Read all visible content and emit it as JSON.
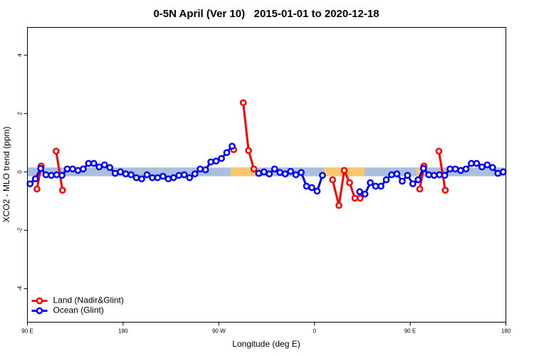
{
  "chart_data": {
    "type": "line",
    "title": "0-5N April (Ver 10)   2015-01-01 to 2020-12-18",
    "xlabel": "Longitude (deg E)",
    "ylabel": "XCO2 - MLO trend (ppm)",
    "xlim": [
      90,
      540
    ],
    "ylim": [
      -5.15,
      4.95
    ],
    "xticks": [
      {
        "value": 90,
        "label": "90 E"
      },
      {
        "value": 180,
        "label": "180"
      },
      {
        "value": 270,
        "label": "90 W"
      },
      {
        "value": 360,
        "label": "0"
      },
      {
        "value": 450,
        "label": "90 E"
      },
      {
        "value": 540,
        "label": "180"
      }
    ],
    "yticks": [
      -4,
      -2,
      0,
      2,
      4
    ],
    "legend": "bottom-left",
    "surface_mask": {
      "ylim": [
        -0.15,
        0.15
      ],
      "ocean_color": "#a9bfdd",
      "land_color": "#f7c96c",
      "land_ranges": [
        [
          281,
          305
        ],
        [
          369,
          407
        ],
        [
          456,
          463
        ]
      ]
    },
    "series": [
      {
        "name": "Land (Nadir&Glint)",
        "color": "#ff0000",
        "x": [
          99,
          103,
          null,
          117,
          123,
          null,
          284,
          null,
          293,
          298,
          303,
          308,
          null,
          377,
          383,
          388,
          393,
          398,
          403,
          null,
          459,
          463,
          null,
          477,
          483
        ],
        "values": [
          -0.59,
          0.2,
          null,
          0.71,
          -0.63,
          null,
          0.76,
          null,
          2.37,
          0.73,
          0.1,
          -0.05,
          null,
          -0.27,
          -1.15,
          0.05,
          -0.37,
          -0.9,
          -0.9,
          null,
          -0.59,
          0.2,
          null,
          0.71,
          -0.63
        ]
      },
      {
        "name": "Ocean (Glint)",
        "color": "#0000ff",
        "x": [
          92.5,
          97.5,
          102.5,
          107.5,
          112.5,
          117.5,
          122.5,
          127.5,
          132.5,
          137.5,
          142.5,
          147.5,
          152.5,
          157.5,
          162.5,
          167.5,
          172.5,
          177.5,
          182.5,
          187.5,
          192.5,
          197.5,
          202.5,
          207.5,
          212.5,
          217.5,
          222.5,
          227.5,
          232.5,
          237.5,
          242.5,
          247.5,
          252.5,
          257.5,
          262.5,
          267.5,
          272.5,
          277.5,
          282.5,
          null,
          307.5,
          312.5,
          317.5,
          322.5,
          327.5,
          332.5,
          337.5,
          342.5,
          347.5,
          352.5,
          357.5,
          362.5,
          367.5,
          null,
          402.5,
          407.5,
          412.5,
          417.5,
          422.5,
          427.5,
          432.5,
          437.5,
          442.5,
          447.5,
          452.5,
          457.5,
          462.5,
          467.5,
          472.5,
          477.5,
          482.5,
          487.5,
          492.5,
          497.5,
          502.5,
          507.5,
          512.5,
          517.5,
          522.5,
          527.5,
          532.5,
          537.5
        ],
        "values": [
          -0.41,
          -0.24,
          0.12,
          -0.1,
          -0.12,
          -0.1,
          -0.12,
          0.1,
          0.1,
          0.05,
          0.1,
          0.29,
          0.29,
          0.17,
          0.24,
          0.15,
          -0.05,
          0,
          -0.07,
          -0.1,
          -0.2,
          -0.24,
          -0.1,
          -0.2,
          -0.2,
          -0.15,
          -0.24,
          -0.2,
          -0.12,
          -0.1,
          -0.2,
          -0.07,
          0.1,
          0.07,
          0.34,
          0.37,
          0.46,
          0.66,
          0.88,
          null,
          -0.05,
          0,
          -0.07,
          0.1,
          -0.02,
          -0.07,
          0.02,
          -0.1,
          -0.02,
          -0.49,
          -0.54,
          -0.66,
          -0.12,
          null,
          -0.68,
          -0.76,
          -0.37,
          -0.49,
          -0.49,
          -0.27,
          -0.1,
          -0.07,
          -0.32,
          -0.12,
          -0.41,
          -0.27,
          0.12,
          -0.1,
          -0.12,
          -0.1,
          -0.12,
          0.1,
          0.1,
          0.05,
          0.1,
          0.29,
          0.29,
          0.17,
          0.24,
          0.15,
          -0.05,
          0
        ]
      }
    ]
  }
}
